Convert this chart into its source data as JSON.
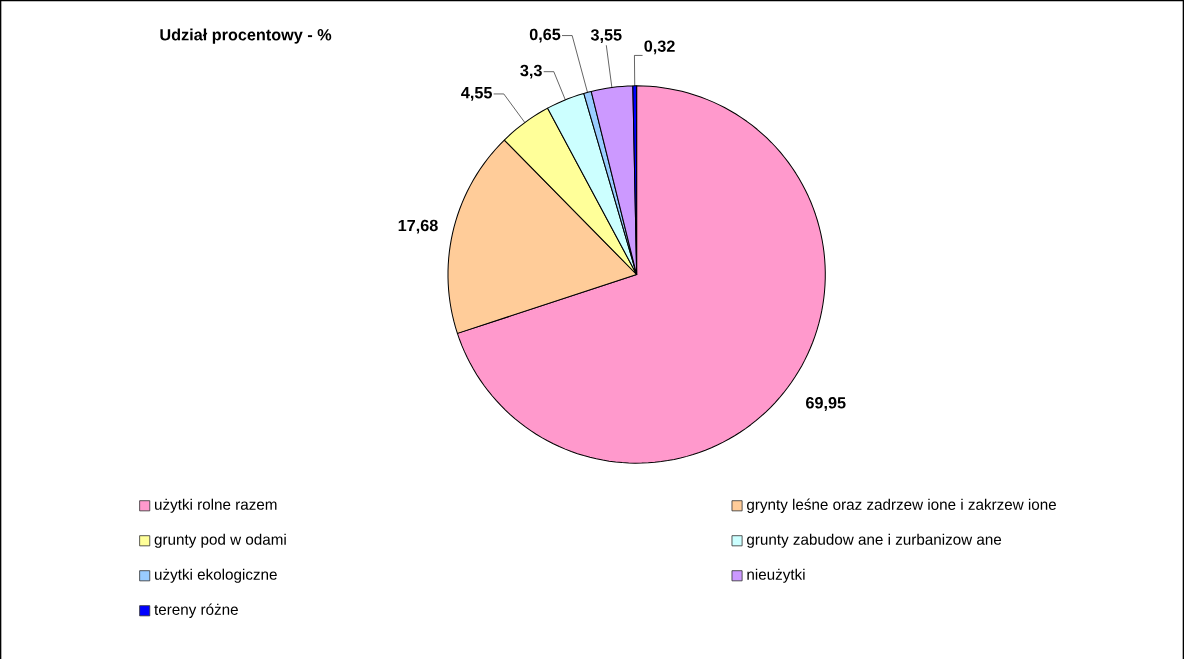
{
  "chart_data": {
    "type": "pie",
    "title": "Udział procentowy - %",
    "categories": [
      "użytki rolne razem",
      "grynty leśne oraz zadrzew ione i zakrzew ione",
      "grunty pod w odami",
      "grunty zabudow ane i zurbanizow ane",
      "użytki ekologiczne",
      "nieużytki",
      "tereny różne"
    ],
    "values": [
      69.95,
      17.68,
      4.55,
      3.3,
      0.65,
      3.55,
      0.32
    ],
    "value_labels": [
      "69,95",
      "17,68",
      "4,55",
      "3,3",
      "0,65",
      "3,55",
      "0,32"
    ],
    "colors": [
      "#ff99cc",
      "#ffcc99",
      "#ffff99",
      "#ccffff",
      "#99ccff",
      "#cc99ff",
      "#0000ff"
    ],
    "legend": "bottom"
  }
}
